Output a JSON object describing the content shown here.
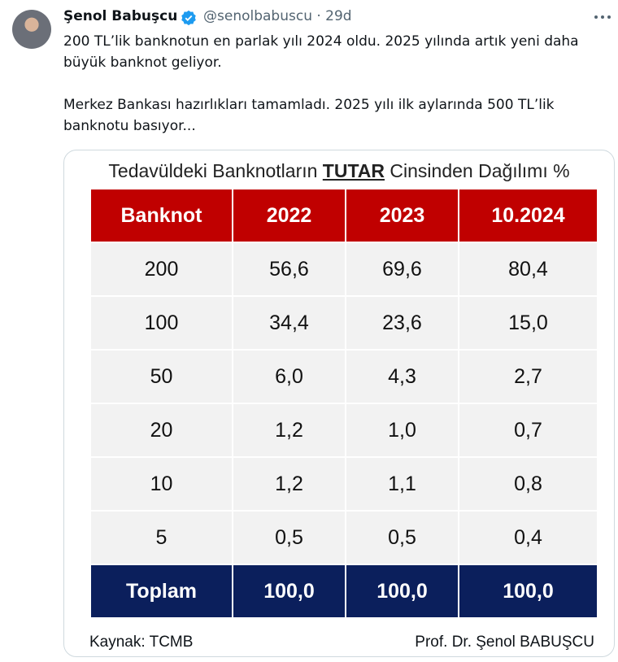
{
  "tweet": {
    "author": "Şenol Babuşcu",
    "meta": "@senolbabuscu · 29d",
    "paragraphs": [
      "200 TL’lik banknotun en parlak yılı 2024 oldu. 2025 yılında artık yeni daha büyük banknot geliyor.",
      "Merkez Bankası hazırlıkları tamamladı. 2025 yılı ilk aylarında 500 TL’lik banknotu basıyor..."
    ]
  },
  "image": {
    "title_prefix": "Tedavüldeki Banknotların ",
    "title_emphasis": "TUTAR",
    "title_suffix": " Cinsinden Dağılımı %",
    "table": {
      "header": [
        "Banknot",
        "2022",
        "2023",
        "10.2024"
      ],
      "rows": [
        [
          "200",
          "56,6",
          "69,6",
          "80,4"
        ],
        [
          "100",
          "34,4",
          "23,6",
          "15,0"
        ],
        [
          "50",
          "6,0",
          "4,3",
          "2,7"
        ],
        [
          "20",
          "1,2",
          "1,0",
          "0,7"
        ],
        [
          "10",
          "1,2",
          "1,1",
          "0,8"
        ],
        [
          "5",
          "0,5",
          "0,5",
          "0,4"
        ]
      ],
      "total": [
        "Toplam",
        "100,0",
        "100,0",
        "100,0"
      ]
    },
    "source": "Kaynak: TCMB",
    "author_credit": "Prof. Dr. Şenol BABUŞCU"
  }
}
